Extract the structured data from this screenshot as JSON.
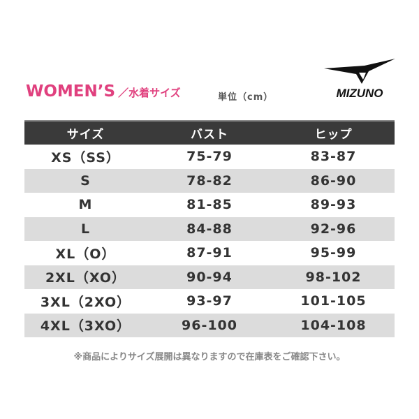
{
  "title": {
    "main": "WOMEN’S",
    "sub": "／水着サイズ"
  },
  "unit": "単位（cm）",
  "logo": {
    "text": "MIZUNO"
  },
  "colors": {
    "title": "#e0407e",
    "header_bg": "#3a3a3a",
    "alt_row": "#dcdcdc"
  },
  "table": {
    "headers": [
      "サイズ",
      "バスト",
      "ヒップ"
    ],
    "rows": [
      [
        "XS（SS）",
        "75-79",
        "83-87"
      ],
      [
        "S",
        "78-82",
        "86-90"
      ],
      [
        "M",
        "81-85",
        "89-93"
      ],
      [
        "L",
        "84-88",
        "92-96"
      ],
      [
        "XL（O）",
        "87-91",
        "95-99"
      ],
      [
        "2XL（XO）",
        "90-94",
        "98-102"
      ],
      [
        "3XL（2XO）",
        "93-97",
        "101-105"
      ],
      [
        "4XL（3XO）",
        "96-100",
        "104-108"
      ]
    ]
  },
  "note": "※商品によりサイズ展開は異なりますので在庫表をご確認下さい。"
}
